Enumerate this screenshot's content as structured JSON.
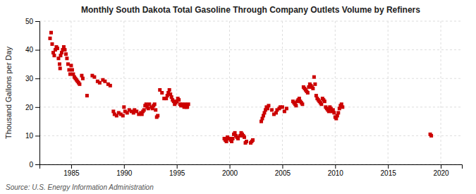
{
  "chart_data": {
    "type": "scatter",
    "title": "Monthly South Dakota Total Gasoline Through Company Outlets Volume by Refiners",
    "ylabel": "Thousand Gallons per Day",
    "source": "Source: U.S. Energy Information Administration",
    "color": "#cc0000",
    "marker": "square",
    "grid": true,
    "xlim": [
      1982,
      2022
    ],
    "xticks": [
      1985,
      1990,
      1995,
      2000,
      2005,
      2010,
      2015,
      2020
    ],
    "ylim": [
      0,
      50
    ],
    "yticks": [
      0,
      10,
      20,
      30,
      40,
      50
    ],
    "x": [
      1983.0,
      1983.1,
      1983.2,
      1983.3,
      1983.4,
      1983.5,
      1983.6,
      1983.7,
      1983.8,
      1983.9,
      1983.95,
      1984.0,
      1984.1,
      1984.2,
      1984.3,
      1984.4,
      1984.5,
      1984.6,
      1984.7,
      1984.8,
      1984.9,
      1985.0,
      1985.1,
      1985.2,
      1985.3,
      1985.4,
      1985.5,
      1985.6,
      1985.7,
      1985.8,
      1986.0,
      1986.1,
      1986.5,
      1987.0,
      1987.2,
      1987.5,
      1987.7,
      1988.0,
      1988.2,
      1988.5,
      1988.7,
      1989.0,
      1989.1,
      1989.3,
      1989.5,
      1989.7,
      1989.9,
      1990.0,
      1990.1,
      1990.3,
      1990.5,
      1990.7,
      1990.9,
      1991.0,
      1991.2,
      1991.4,
      1991.6,
      1991.7,
      1991.8,
      1991.9,
      1992.0,
      1992.1,
      1992.2,
      1992.3,
      1992.4,
      1992.6,
      1992.7,
      1992.8,
      1992.9,
      1993.0,
      1993.1,
      1993.2,
      1993.4,
      1993.6,
      1993.8,
      1994.0,
      1994.1,
      1994.2,
      1994.3,
      1994.4,
      1994.5,
      1994.6,
      1994.7,
      1994.8,
      1994.9,
      1995.0,
      1995.1,
      1995.2,
      1995.3,
      1995.4,
      1995.5,
      1995.6,
      1995.7,
      1995.8,
      1995.9,
      1996.0,
      1996.1,
      1999.5,
      1999.6,
      1999.7,
      1999.8,
      1999.9,
      2000.0,
      2000.1,
      2000.2,
      2000.3,
      2000.4,
      2000.5,
      2000.6,
      2000.7,
      2000.8,
      2001.0,
      2001.1,
      2001.2,
      2001.3,
      2001.4,
      2001.5,
      2001.6,
      2002.0,
      2002.1,
      2002.2,
      2003.0,
      2003.1,
      2003.2,
      2003.3,
      2003.4,
      2003.5,
      2003.6,
      2003.7,
      2004.0,
      2004.2,
      2004.4,
      2004.5,
      2004.7,
      2004.8,
      2005.0,
      2005.2,
      2005.4,
      2006.0,
      2006.1,
      2006.2,
      2006.3,
      2006.4,
      2006.5,
      2006.6,
      2006.7,
      2006.8,
      2006.9,
      2007.0,
      2007.1,
      2007.2,
      2007.3,
      2007.4,
      2007.5,
      2007.6,
      2007.7,
      2007.8,
      2007.9,
      2008.0,
      2008.1,
      2008.2,
      2008.3,
      2008.4,
      2008.5,
      2008.6,
      2008.7,
      2008.8,
      2008.9,
      2009.0,
      2009.1,
      2009.2,
      2009.3,
      2009.4,
      2009.5,
      2009.6,
      2009.7,
      2009.8,
      2009.9,
      2010.0,
      2010.1,
      2010.2,
      2010.3,
      2010.4,
      2010.5,
      2010.6,
      2010.7,
      2019.0,
      2019.1
    ],
    "values": [
      44.0,
      46.0,
      42.0,
      39.0,
      38.0,
      40.0,
      41.0,
      40.5,
      37.0,
      35.0,
      33.5,
      38.0,
      39.0,
      40.0,
      41.0,
      40.0,
      38.5,
      37.0,
      35.0,
      33.0,
      31.5,
      34.5,
      33.0,
      31.5,
      30.5,
      30.0,
      29.5,
      29.0,
      28.5,
      28.0,
      31.0,
      30.0,
      24.0,
      31.0,
      30.5,
      29.0,
      28.5,
      29.5,
      29.0,
      28.0,
      27.5,
      18.5,
      17.5,
      17.0,
      18.0,
      17.5,
      17.0,
      20.0,
      18.5,
      18.0,
      19.0,
      18.5,
      18.0,
      19.0,
      18.5,
      17.5,
      18.0,
      17.5,
      18.5,
      19.0,
      20.5,
      21.0,
      20.0,
      19.5,
      21.0,
      20.0,
      19.5,
      20.5,
      21.0,
      19.0,
      16.5,
      17.0,
      26.0,
      25.0,
      23.0,
      23.0,
      24.0,
      25.0,
      26.0,
      24.5,
      23.5,
      22.5,
      22.0,
      21.0,
      21.5,
      22.0,
      23.0,
      22.5,
      21.0,
      20.5,
      21.0,
      20.5,
      20.0,
      21.0,
      20.0,
      20.0,
      21.0,
      9.0,
      8.5,
      8.0,
      9.5,
      9.0,
      9.0,
      8.5,
      8.0,
      9.0,
      10.5,
      11.0,
      10.0,
      9.5,
      9.0,
      10.0,
      11.0,
      10.5,
      10.0,
      9.5,
      7.5,
      8.0,
      7.5,
      8.0,
      8.5,
      15.0,
      16.0,
      17.0,
      18.0,
      19.0,
      20.0,
      19.5,
      20.5,
      19.0,
      17.5,
      18.0,
      19.0,
      19.5,
      20.0,
      20.0,
      18.5,
      19.5,
      22.0,
      21.5,
      21.0,
      20.5,
      22.0,
      22.5,
      23.0,
      22.0,
      21.5,
      21.0,
      27.0,
      26.5,
      26.0,
      25.5,
      25.0,
      27.0,
      28.0,
      27.5,
      27.0,
      26.5,
      30.5,
      28.0,
      24.0,
      23.0,
      22.5,
      22.0,
      21.5,
      21.0,
      23.0,
      22.5,
      22.0,
      20.0,
      19.5,
      19.0,
      18.5,
      20.0,
      19.5,
      18.5,
      19.0,
      18.0,
      16.5,
      16.0,
      17.0,
      18.0,
      19.5,
      20.5,
      21.0,
      20.0,
      10.5,
      10.0
    ]
  }
}
